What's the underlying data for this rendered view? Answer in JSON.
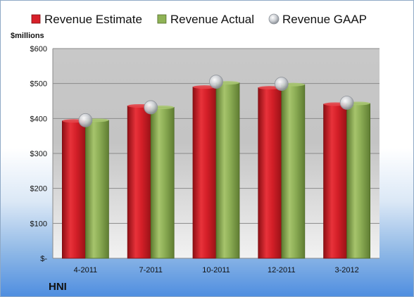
{
  "chart_data": {
    "type": "bar",
    "title": "",
    "ylabel": "$millions",
    "xlabel": "",
    "categories": [
      "4-2011",
      "7-2011",
      "10-2011",
      "12-2011",
      "3-2012"
    ],
    "series": [
      {
        "name": "Revenue Estimate",
        "kind": "bar",
        "color": "#d8202a",
        "values": [
          393,
          436,
          490,
          488,
          441
        ]
      },
      {
        "name": "Revenue Actual",
        "kind": "bar",
        "color": "#8fb356",
        "values": [
          395,
          432,
          502,
          497,
          443
        ]
      },
      {
        "name": "Revenue GAAP",
        "kind": "marker",
        "color": "#c8ccd2",
        "values": [
          395,
          432,
          505,
          499,
          445
        ]
      }
    ],
    "ylim": [
      0,
      600
    ],
    "yticks": [
      0,
      100,
      200,
      300,
      400,
      500,
      600
    ],
    "ytick_labels": [
      "$-",
      "$100",
      "$200",
      "$300",
      "$400",
      "$500",
      "$600"
    ],
    "grid": true,
    "legend_position": "top"
  },
  "labels": {
    "units": "$millions",
    "ticker": "HNI"
  }
}
